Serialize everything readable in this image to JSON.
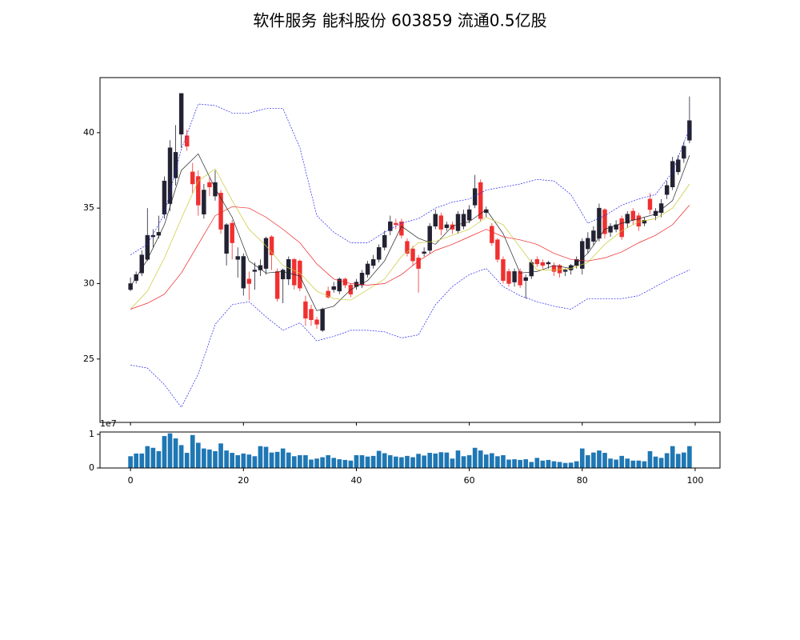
{
  "chart_data": [
    {
      "type": "candlestick",
      "title": "软件服务 能科股份 603859 流通0.5亿股",
      "x": [
        0,
        1,
        2,
        3,
        4,
        5,
        6,
        7,
        8,
        9,
        10,
        11,
        12,
        13,
        14,
        15,
        16,
        17,
        18,
        19,
        20,
        21,
        22,
        23,
        24,
        25,
        26,
        27,
        28,
        29,
        30,
        31,
        32,
        33,
        34,
        35,
        36,
        37,
        38,
        39,
        40,
        41,
        42,
        43,
        44,
        45,
        46,
        47,
        48,
        49,
        50,
        51,
        52,
        53,
        54,
        55,
        56,
        57,
        58,
        59,
        60,
        61,
        62,
        63,
        64,
        65,
        66,
        67,
        68,
        69,
        70,
        71,
        72,
        73,
        74,
        75,
        76,
        77,
        78,
        79,
        80,
        81,
        82,
        83,
        84,
        85,
        86,
        87,
        88,
        89,
        90,
        91,
        92,
        93,
        94,
        95,
        96,
        97,
        98,
        99
      ],
      "open": [
        29.6,
        30.2,
        30.7,
        31.6,
        33.1,
        33.2,
        34.6,
        35.3,
        37.0,
        39.9,
        39.8,
        37.4,
        37.1,
        34.6,
        36.7,
        35.8,
        36.0,
        32.0,
        34.0,
        31.6,
        29.7,
        30.3,
        30.8,
        30.9,
        31.0,
        33.1,
        30.8,
        30.3,
        30.3,
        31.6,
        31.5,
        28.8,
        28.3,
        27.6,
        26.9,
        29.5,
        29.6,
        29.5,
        30.3,
        29.9,
        29.8,
        29.9,
        30.6,
        31.2,
        31.6,
        32.4,
        33.5,
        34.0,
        34.1,
        32.8,
        32.3,
        31.7,
        32.0,
        32.2,
        33.8,
        34.5,
        33.7,
        33.9,
        33.5,
        33.8,
        34.2,
        35.2,
        36.7,
        34.7,
        33.8,
        32.9,
        31.6,
        30.8,
        30.1,
        30.8,
        30.2,
        30.5,
        31.6,
        31.4,
        31.3,
        31.2,
        31.2,
        30.8,
        30.9,
        31.2,
        31.0,
        32.3,
        32.8,
        33.0,
        34.9,
        33.4,
        33.6,
        34.3,
        34.0,
        34.8,
        34.5,
        34.0,
        35.6,
        34.5,
        34.7,
        35.9,
        36.4,
        37.4,
        38.3,
        39.5
      ],
      "high": [
        30.4,
        30.8,
        32.2,
        35.0,
        33.6,
        34.5,
        37.1,
        39.5,
        40.5,
        42.6,
        40.2,
        38.0,
        37.5,
        36.6,
        37.0,
        37.5,
        36.2,
        34.0,
        34.2,
        32.4,
        32.0,
        30.8,
        31.4,
        31.6,
        33.1,
        33.2,
        31.0,
        31.0,
        31.8,
        31.7,
        31.6,
        29.2,
        28.6,
        27.8,
        28.4,
        29.8,
        30.1,
        30.4,
        30.4,
        30.0,
        30.3,
        30.9,
        31.5,
        31.9,
        32.6,
        33.5,
        34.5,
        34.3,
        34.3,
        33.0,
        32.5,
        31.9,
        32.4,
        34.0,
        34.9,
        34.7,
        34.1,
        34.1,
        34.8,
        34.9,
        35.2,
        37.2,
        36.9,
        35.1,
        34.0,
        33.0,
        31.8,
        31.0,
        31.0,
        31.0,
        30.6,
        31.6,
        31.8,
        31.6,
        31.5,
        31.4,
        31.3,
        31.0,
        31.3,
        31.8,
        33.0,
        33.4,
        33.8,
        35.3,
        35.0,
        34.0,
        34.2,
        34.5,
        34.8,
        35.0,
        34.7,
        34.4,
        36.0,
        35.0,
        35.6,
        36.8,
        38.4,
        38.5,
        39.4,
        42.4
      ],
      "low": [
        29.5,
        30.0,
        30.5,
        31.5,
        32.4,
        33.0,
        34.3,
        34.8,
        36.5,
        39.0,
        38.8,
        36.0,
        34.5,
        34.3,
        35.8,
        35.5,
        33.3,
        31.2,
        31.6,
        30.4,
        29.2,
        28.9,
        29.6,
        30.5,
        30.6,
        30.9,
        28.8,
        28.7,
        29.9,
        29.6,
        29.5,
        27.2,
        27.2,
        27.0,
        26.8,
        29.0,
        29.4,
        29.3,
        29.7,
        29.1,
        29.6,
        29.7,
        30.4,
        31.0,
        31.4,
        32.2,
        33.2,
        33.6,
        33.0,
        31.8,
        31.2,
        29.4,
        31.8,
        32.0,
        33.6,
        33.2,
        33.5,
        33.3,
        33.3,
        33.6,
        34.0,
        35.0,
        34.1,
        34.4,
        32.5,
        31.4,
        30.0,
        29.8,
        29.8,
        29.7,
        29.0,
        30.3,
        31.1,
        31.0,
        31.0,
        30.5,
        30.4,
        30.5,
        30.6,
        31.0,
        30.6,
        32.0,
        32.5,
        32.8,
        33.0,
        33.1,
        33.4,
        32.9,
        33.7,
        33.9,
        33.5,
        33.8,
        34.6,
        34.2,
        34.4,
        35.6,
        36.2,
        37.2,
        38.0,
        39.3
      ],
      "close": [
        30.0,
        30.6,
        31.9,
        33.2,
        33.2,
        33.4,
        36.8,
        39.0,
        38.7,
        42.6,
        39.1,
        36.6,
        35.2,
        36.2,
        36.4,
        36.7,
        33.6,
        33.9,
        32.7,
        31.8,
        31.8,
        30.0,
        30.9,
        31.2,
        33.0,
        31.9,
        29.0,
        30.9,
        31.6,
        29.9,
        29.7,
        27.7,
        27.6,
        27.3,
        28.3,
        29.1,
        29.8,
        30.3,
        29.9,
        29.3,
        30.1,
        30.7,
        31.3,
        31.6,
        32.4,
        33.2,
        34.1,
        33.9,
        33.2,
        32.0,
        31.5,
        31.0,
        32.1,
        33.8,
        34.6,
        33.6,
        33.9,
        33.6,
        34.6,
        34.6,
        34.9,
        36.3,
        34.3,
        34.9,
        32.7,
        31.6,
        30.2,
        30.0,
        30.8,
        29.9,
        30.4,
        31.4,
        31.3,
        31.2,
        31.4,
        30.8,
        30.7,
        30.9,
        31.2,
        31.6,
        32.8,
        33.0,
        33.5,
        35.0,
        33.3,
        33.8,
        33.9,
        33.1,
        34.6,
        34.2,
        33.8,
        34.2,
        34.9,
        34.8,
        35.3,
        36.5,
        38.1,
        38.2,
        39.1,
        40.8
      ],
      "up_color": "#222233",
      "down_color": "#f03030",
      "lines": [
        {
          "color": "#222222",
          "linestyle": "solid",
          "x": [
            0,
            3,
            6,
            9,
            12,
            15,
            18,
            21,
            24,
            27,
            30,
            33,
            36,
            39,
            42,
            45,
            48,
            51,
            54,
            57,
            60,
            63,
            66,
            69,
            72,
            75,
            78,
            81,
            84,
            87,
            90,
            93,
            96,
            99
          ],
          "values": [
            29.8,
            31.6,
            33.9,
            37.5,
            38.6,
            36.3,
            34.4,
            31.5,
            30.7,
            30.8,
            30.5,
            28.2,
            28.5,
            29.6,
            30.2,
            31.5,
            33.8,
            33.0,
            32.6,
            33.8,
            34.1,
            34.9,
            33.3,
            30.7,
            30.8,
            31.2,
            31.0,
            32.0,
            33.6,
            34.0,
            34.3,
            34.6,
            35.5,
            38.5
          ]
        },
        {
          "color": "#c8c832",
          "linestyle": "solid",
          "x": [
            0,
            3,
            6,
            9,
            12,
            15,
            18,
            21,
            24,
            27,
            30,
            33,
            36,
            39,
            42,
            45,
            48,
            51,
            54,
            57,
            60,
            63,
            66,
            69,
            72,
            75,
            78,
            81,
            84,
            87,
            90,
            93,
            96,
            99
          ],
          "values": [
            28.3,
            29.5,
            31.7,
            34.3,
            36.8,
            37.6,
            35.5,
            33.6,
            32.5,
            31.2,
            30.7,
            29.5,
            29.0,
            28.9,
            29.6,
            30.3,
            31.8,
            32.7,
            32.8,
            33.2,
            33.6,
            34.4,
            33.9,
            32.4,
            30.9,
            30.9,
            31.0,
            31.4,
            32.6,
            33.5,
            34.1,
            34.3,
            35.0,
            36.6
          ]
        },
        {
          "color": "#ee2222",
          "linestyle": "solid",
          "x": [
            0,
            3,
            6,
            9,
            12,
            15,
            18,
            21,
            24,
            27,
            30,
            33,
            36,
            39,
            42,
            45,
            48,
            51,
            54,
            57,
            60,
            63,
            66,
            69,
            72,
            75,
            78,
            81,
            84,
            87,
            90,
            93,
            96,
            99
          ],
          "values": [
            28.3,
            28.7,
            29.3,
            30.7,
            32.6,
            34.5,
            35.1,
            35.0,
            34.4,
            33.6,
            32.7,
            31.3,
            30.3,
            30.0,
            29.9,
            30.0,
            30.6,
            31.5,
            32.2,
            32.6,
            33.1,
            33.6,
            33.1,
            32.9,
            32.6,
            32.0,
            31.6,
            31.5,
            31.7,
            32.1,
            32.7,
            33.2,
            33.9,
            35.2
          ]
        },
        {
          "color": "#2222ee",
          "linestyle": "dashed",
          "x": [
            0,
            3,
            6,
            9,
            12,
            15,
            18,
            21,
            24,
            27,
            30,
            33,
            36,
            39,
            42,
            45,
            48,
            51,
            54,
            57,
            60,
            63,
            66,
            69,
            72,
            75,
            78,
            81,
            84,
            87,
            90,
            93,
            96,
            99
          ],
          "values": [
            31.9,
            32.6,
            34.6,
            38.9,
            41.9,
            41.8,
            41.3,
            41.3,
            41.6,
            41.6,
            39.0,
            34.5,
            33.4,
            32.7,
            32.7,
            33.4,
            34.0,
            34.3,
            35.0,
            35.4,
            35.6,
            36.2,
            36.4,
            36.6,
            36.9,
            36.8,
            35.9,
            34.0,
            34.5,
            35.2,
            35.6,
            35.9,
            37.4,
            40.3
          ]
        },
        {
          "color": "#2222ee",
          "linestyle": "dashed",
          "x": [
            0,
            3,
            6,
            9,
            12,
            15,
            18,
            21,
            24,
            27,
            30,
            33,
            36,
            39,
            42,
            45,
            48,
            51,
            54,
            57,
            60,
            63,
            66,
            69,
            72,
            75,
            78,
            81,
            84,
            87,
            90,
            93,
            96,
            99
          ],
          "values": [
            24.6,
            24.4,
            23.3,
            21.8,
            24.0,
            27.3,
            28.6,
            28.8,
            27.8,
            26.9,
            27.4,
            26.2,
            26.5,
            26.9,
            26.9,
            26.8,
            26.4,
            26.6,
            28.6,
            29.8,
            30.6,
            31.0,
            29.8,
            29.2,
            28.8,
            28.5,
            28.3,
            29.0,
            29.0,
            29.0,
            29.2,
            29.8,
            30.4,
            30.9
          ]
        }
      ],
      "xlim": [
        -5.4,
        104.4
      ],
      "xticks": [
        0,
        20,
        40,
        60,
        80,
        100
      ],
      "ylim": [
        20.8,
        43.65
      ],
      "yticks": [
        25,
        30,
        35,
        40
      ]
    },
    {
      "type": "bar",
      "color": "#1f77b4",
      "offset_label": "1e7",
      "x": [
        0,
        1,
        2,
        3,
        4,
        5,
        6,
        7,
        8,
        9,
        10,
        11,
        12,
        13,
        14,
        15,
        16,
        17,
        18,
        19,
        20,
        21,
        22,
        23,
        24,
        25,
        26,
        27,
        28,
        29,
        30,
        31,
        32,
        33,
        34,
        35,
        36,
        37,
        38,
        39,
        40,
        41,
        42,
        43,
        44,
        45,
        46,
        47,
        48,
        49,
        50,
        51,
        52,
        53,
        54,
        55,
        56,
        57,
        58,
        59,
        60,
        61,
        62,
        63,
        64,
        65,
        66,
        67,
        68,
        69,
        70,
        71,
        72,
        73,
        74,
        75,
        76,
        77,
        78,
        79,
        80,
        81,
        82,
        83,
        84,
        85,
        86,
        87,
        88,
        89,
        90,
        91,
        92,
        93,
        94,
        95,
        96,
        97,
        98,
        99
      ],
      "values": [
        3500000,
        4300000,
        4300000,
        6500000,
        6000000,
        5000000,
        9500000,
        10300000,
        8800000,
        6800000,
        4500000,
        9800000,
        7500000,
        5800000,
        5500000,
        5000000,
        7300000,
        5200000,
        4500000,
        3800000,
        4300000,
        4000000,
        3500000,
        6500000,
        6300000,
        4600000,
        4800000,
        5800000,
        4600000,
        3500000,
        3800000,
        3800000,
        2500000,
        2800000,
        3200000,
        3800000,
        3000000,
        2600000,
        2400000,
        2200000,
        3800000,
        3800000,
        3400000,
        3600000,
        5100000,
        4400000,
        3800000,
        3400000,
        3200000,
        3600000,
        3200000,
        4200000,
        3700000,
        4500000,
        4300000,
        4700000,
        4600000,
        2800000,
        5200000,
        3500000,
        3800000,
        6000000,
        5200000,
        4000000,
        4400000,
        3500000,
        3800000,
        2500000,
        2600000,
        2400000,
        2600000,
        1800000,
        3000000,
        2200000,
        2400000,
        2000000,
        1800000,
        1500000,
        1600000,
        2000000,
        5800000,
        3800000,
        4600000,
        5200000,
        4500000,
        2800000,
        2500000,
        3600000,
        2800000,
        2200000,
        2200000,
        2000000,
        5000000,
        3400000,
        3000000,
        4400000,
        6500000,
        4200000,
        4600000,
        6500000
      ],
      "xlim": [
        -5.4,
        104.4
      ],
      "xticks": [
        0,
        20,
        40,
        60,
        80,
        100
      ],
      "ylim": [
        0,
        10700000
      ],
      "yticks": [
        0,
        {
          "value": 10000000,
          "label": "1"
        }
      ]
    }
  ]
}
